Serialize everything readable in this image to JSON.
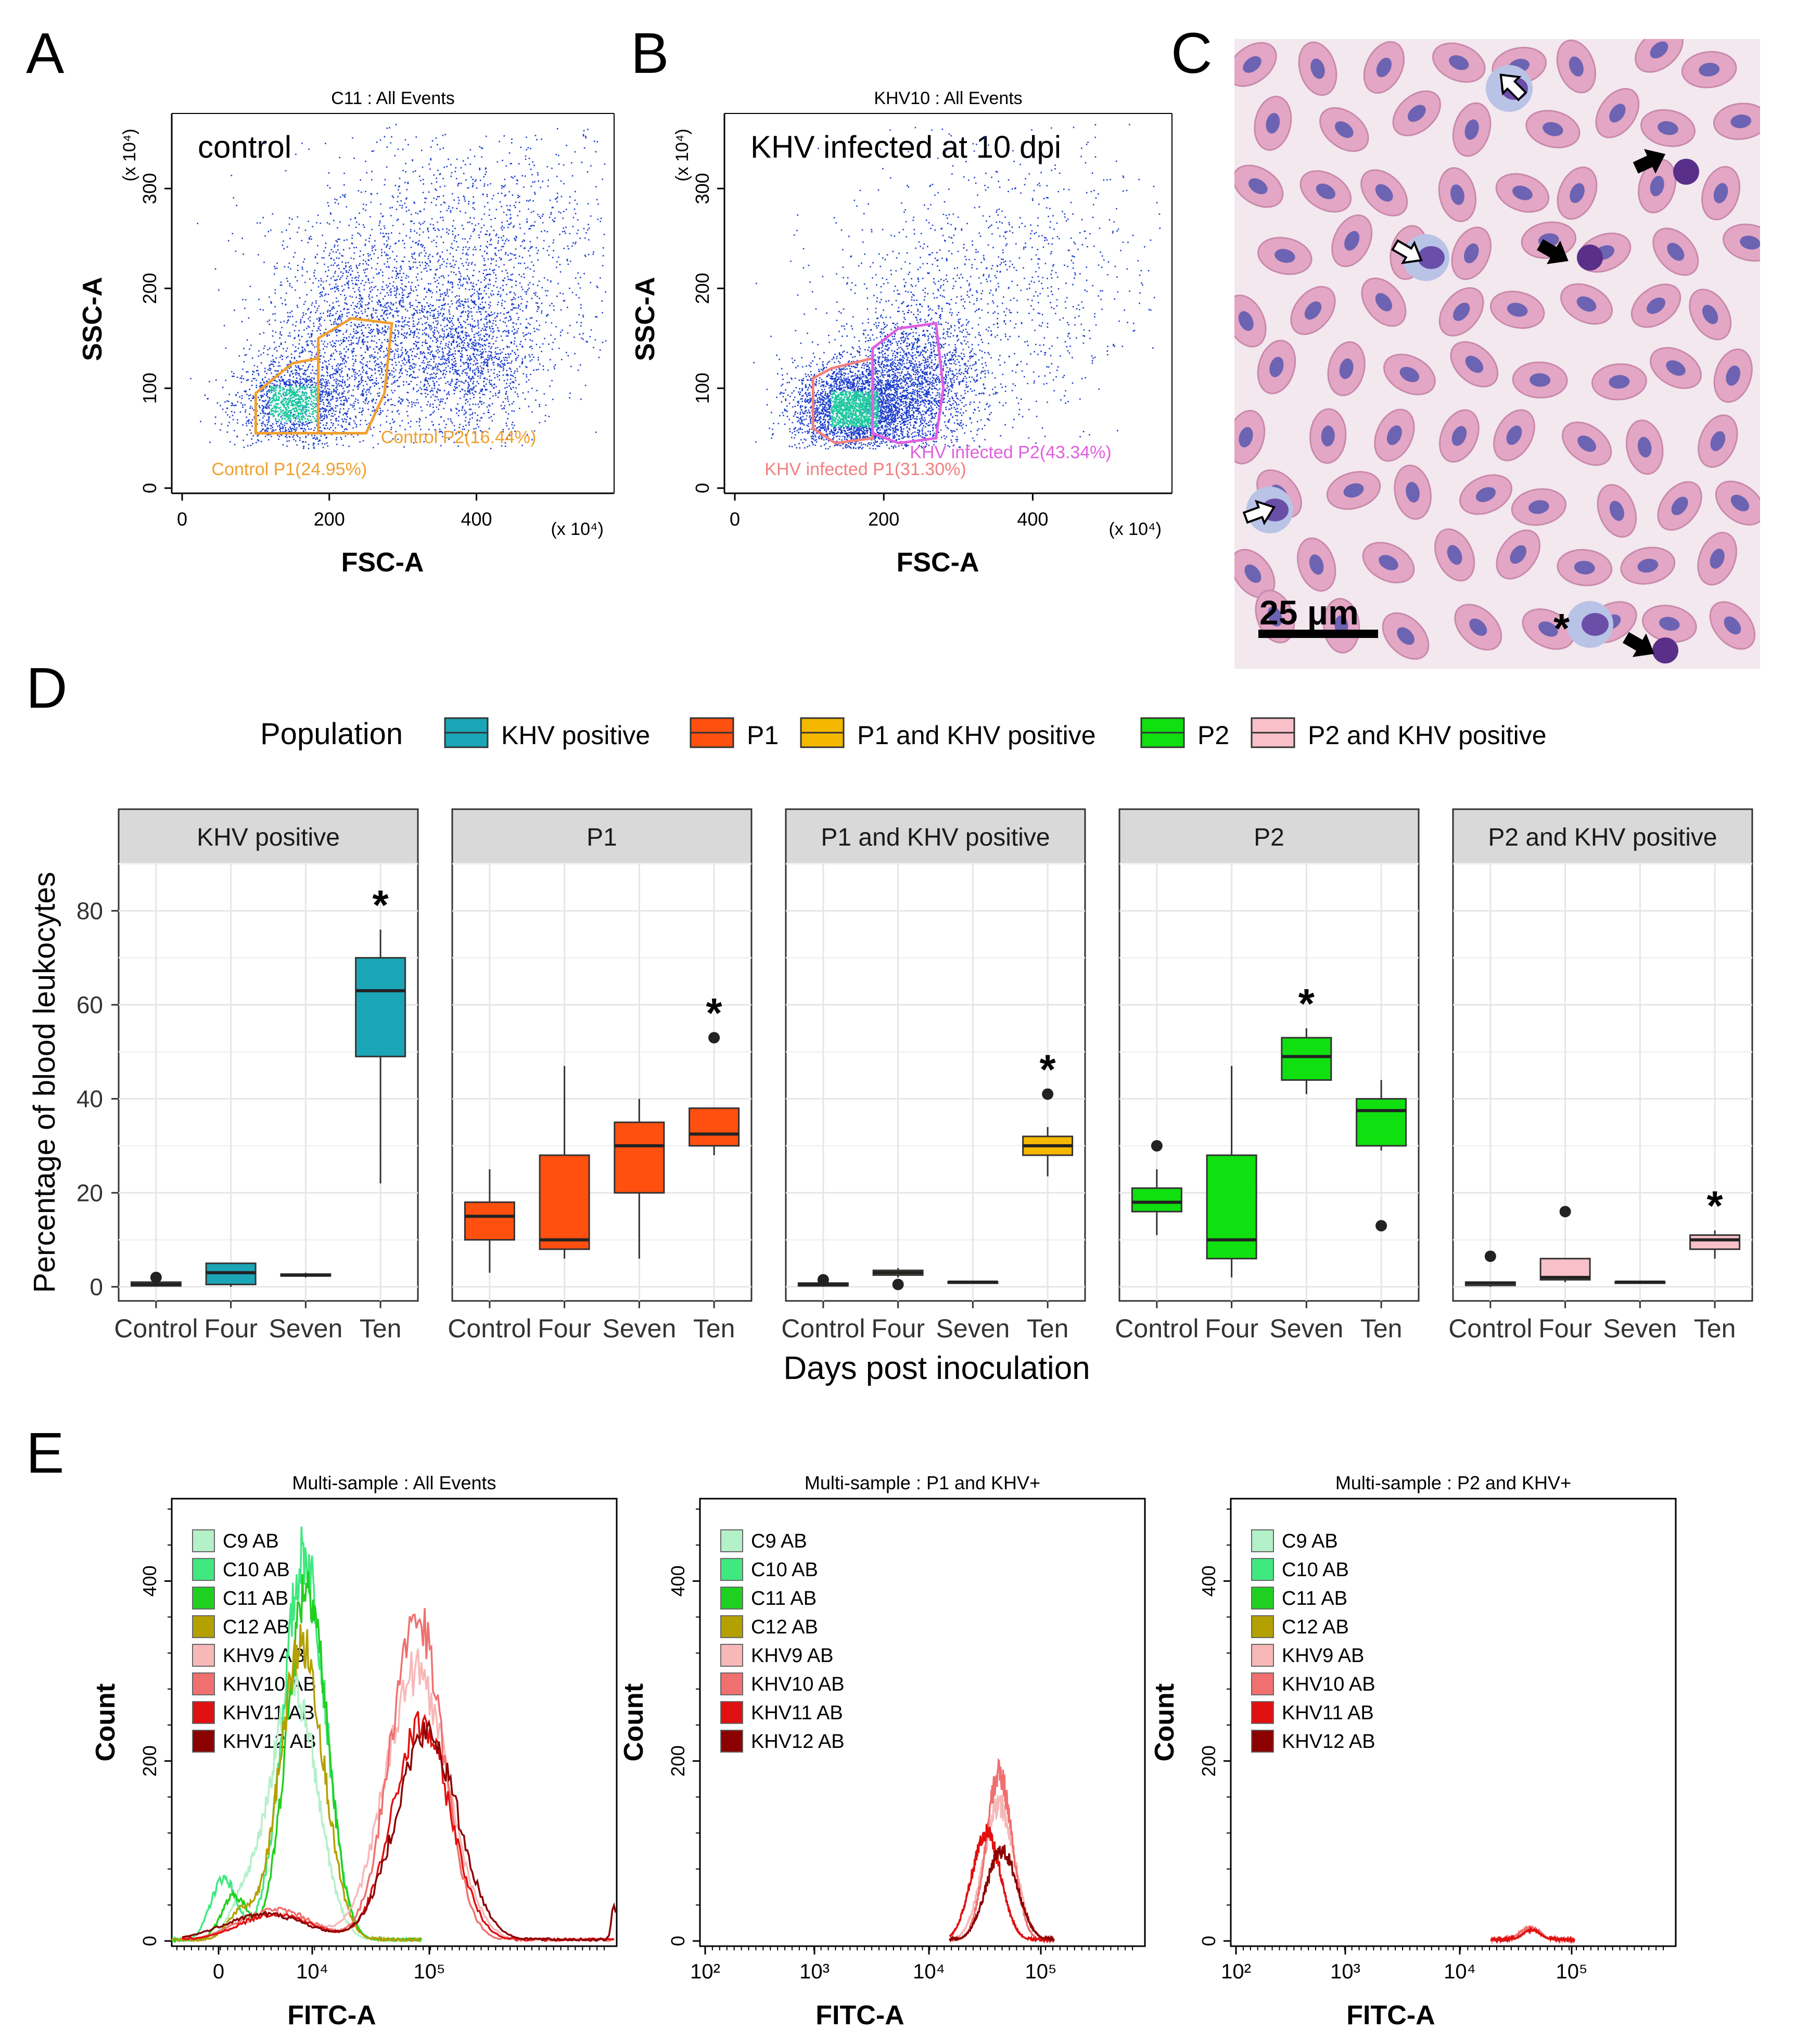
{
  "panel_labels": {
    "a": "A",
    "b": "B",
    "c": "C",
    "d": "D",
    "e": "E"
  },
  "panel_a": {
    "title": "C11 : All Events",
    "annotation": "control",
    "xlabel": "FSC-A",
    "ylabel": "SSC-A",
    "xscale": "(x 10⁴)",
    "yscale": "(x 10⁴)",
    "xticks": [
      "0",
      "200",
      "400"
    ],
    "yticks": [
      "0",
      "100",
      "200",
      "300"
    ],
    "gate_p1": "Control P1(24.95%)",
    "gate_p2": "Control P2(16.44%)",
    "gate_color": "#f0a030",
    "dot_color": "#1a3ccc"
  },
  "panel_b": {
    "title": "KHV10 : All Events",
    "annotation": "KHV infected at 10 dpi",
    "xlabel": "FSC-A",
    "ylabel": "SSC-A",
    "xscale": "(x 10⁴)",
    "yscale": "(x 10⁴)",
    "xticks": [
      "0",
      "200",
      "400"
    ],
    "yticks": [
      "0",
      "100",
      "200",
      "300"
    ],
    "gate_p1": "KHV infected P1(31.30%)",
    "gate_p2": "KHV infected P2(43.34%)",
    "gate_p1_color": "#f08080",
    "gate_p2_color": "#e060e0"
  },
  "panel_c": {
    "scale_bar": "25 μm",
    "asterisk": "*"
  },
  "panel_d": {
    "legend_title": "Population",
    "xlabel": "Days post inoculation",
    "ylabel": "Percentage of blood leukocytes",
    "asterisk": "*",
    "chart_data": {
      "type": "box",
      "categories": [
        "Control",
        "Four",
        "Seven",
        "Ten"
      ],
      "ylim": [
        -3,
        90
      ],
      "yticks": [
        0,
        20,
        40,
        60,
        80
      ],
      "facets": [
        {
          "name": "KHV positive",
          "color": "#1aa6b7",
          "sig_index": 3,
          "boxes": [
            {
              "min": 0,
              "q1": 0.2,
              "med": 0.5,
              "q3": 1,
              "max": 1.5,
              "outliers": [
                2
              ]
            },
            {
              "min": 0,
              "q1": 0.5,
              "med": 3,
              "q3": 5,
              "max": 5,
              "outliers": []
            },
            {
              "min": 2,
              "q1": 2.3,
              "med": 2.5,
              "q3": 2.7,
              "max": 3,
              "outliers": []
            },
            {
              "min": 22,
              "q1": 49,
              "med": 63,
              "q3": 70,
              "max": 76,
              "outliers": []
            }
          ]
        },
        {
          "name": "P1",
          "color": "#ff5010",
          "sig_index": 3,
          "boxes": [
            {
              "min": 3,
              "q1": 10,
              "med": 15,
              "q3": 18,
              "max": 25,
              "outliers": []
            },
            {
              "min": 6,
              "q1": 8,
              "med": 10,
              "q3": 28,
              "max": 47,
              "outliers": []
            },
            {
              "min": 6,
              "q1": 20,
              "med": 30,
              "q3": 35,
              "max": 40,
              "outliers": []
            },
            {
              "min": 28,
              "q1": 30,
              "med": 32.5,
              "q3": 38,
              "max": 38,
              "outliers": [
                53
              ]
            }
          ]
        },
        {
          "name": "P1 and KHV positive",
          "color": "#f5b800",
          "sig_index": 3,
          "boxes": [
            {
              "min": 0,
              "q1": 0.2,
              "med": 0.5,
              "q3": 0.8,
              "max": 1,
              "outliers": [
                1.5
              ]
            },
            {
              "min": 2,
              "q1": 2.5,
              "med": 3,
              "q3": 3.5,
              "max": 4,
              "outliers": [
                0.5
              ]
            },
            {
              "min": 0.8,
              "q1": 0.9,
              "med": 1,
              "q3": 1.1,
              "max": 1.2,
              "outliers": []
            },
            {
              "min": 23.5,
              "q1": 28,
              "med": 30,
              "q3": 32,
              "max": 34,
              "outliers": [
                41
              ]
            }
          ]
        },
        {
          "name": "P2",
          "color": "#10e010",
          "sig_index": 2,
          "boxes": [
            {
              "min": 11,
              "q1": 16,
              "med": 18,
              "q3": 21,
              "max": 25,
              "outliers": [
                30
              ]
            },
            {
              "min": 2,
              "q1": 6,
              "med": 10,
              "q3": 28,
              "max": 47,
              "outliers": []
            },
            {
              "min": 41,
              "q1": 44,
              "med": 49,
              "q3": 53,
              "max": 55,
              "outliers": []
            },
            {
              "min": 29,
              "q1": 30,
              "med": 37.5,
              "q3": 40,
              "max": 44,
              "outliers": [
                13
              ]
            }
          ]
        },
        {
          "name": "P2 and KHV positive",
          "color": "#f8c0c8",
          "sig_index": 3,
          "boxes": [
            {
              "min": 0,
              "q1": 0.3,
              "med": 0.8,
              "q3": 1,
              "max": 1,
              "outliers": [
                6.5
              ]
            },
            {
              "min": 1,
              "q1": 1.5,
              "med": 2,
              "q3": 6,
              "max": 6,
              "outliers": [
                16
              ]
            },
            {
              "min": 0.8,
              "q1": 0.9,
              "med": 1,
              "q3": 1.1,
              "max": 1.2,
              "outliers": []
            },
            {
              "min": 6,
              "q1": 8,
              "med": 10,
              "q3": 11,
              "max": 12,
              "outliers": []
            }
          ]
        }
      ]
    }
  },
  "panel_e": {
    "xlabel": "FITC-A",
    "ylabel": "Count",
    "legend": [
      {
        "label": "C9 AB",
        "color": "#b4f0c8"
      },
      {
        "label": "C10 AB",
        "color": "#40e880"
      },
      {
        "label": "C11 AB",
        "color": "#20d020"
      },
      {
        "label": "C12 AB",
        "color": "#b4a000"
      },
      {
        "label": "KHV9 AB",
        "color": "#f8b8b8"
      },
      {
        "label": "KHV10 AB",
        "color": "#f07070"
      },
      {
        "label": "KHV11 AB",
        "color": "#e01010"
      },
      {
        "label": "KHV12 AB",
        "color": "#8b0000"
      }
    ],
    "plots": [
      {
        "title": "Multi-sample : All Events",
        "xticks": [
          "0",
          "10⁴",
          "10⁵"
        ],
        "yticks": [
          "0",
          "200",
          "400"
        ]
      },
      {
        "title": "Multi-sample : P1 and KHV+",
        "xticks": [
          "10²",
          "10³",
          "10⁴",
          "10⁵"
        ],
        "yticks": [
          "0",
          "200",
          "400"
        ]
      },
      {
        "title": "Multi-sample : P2 and KHV+",
        "xticks": [
          "10²",
          "10³",
          "10⁴",
          "10⁵"
        ],
        "yticks": [
          "0",
          "200",
          "400"
        ]
      }
    ]
  }
}
